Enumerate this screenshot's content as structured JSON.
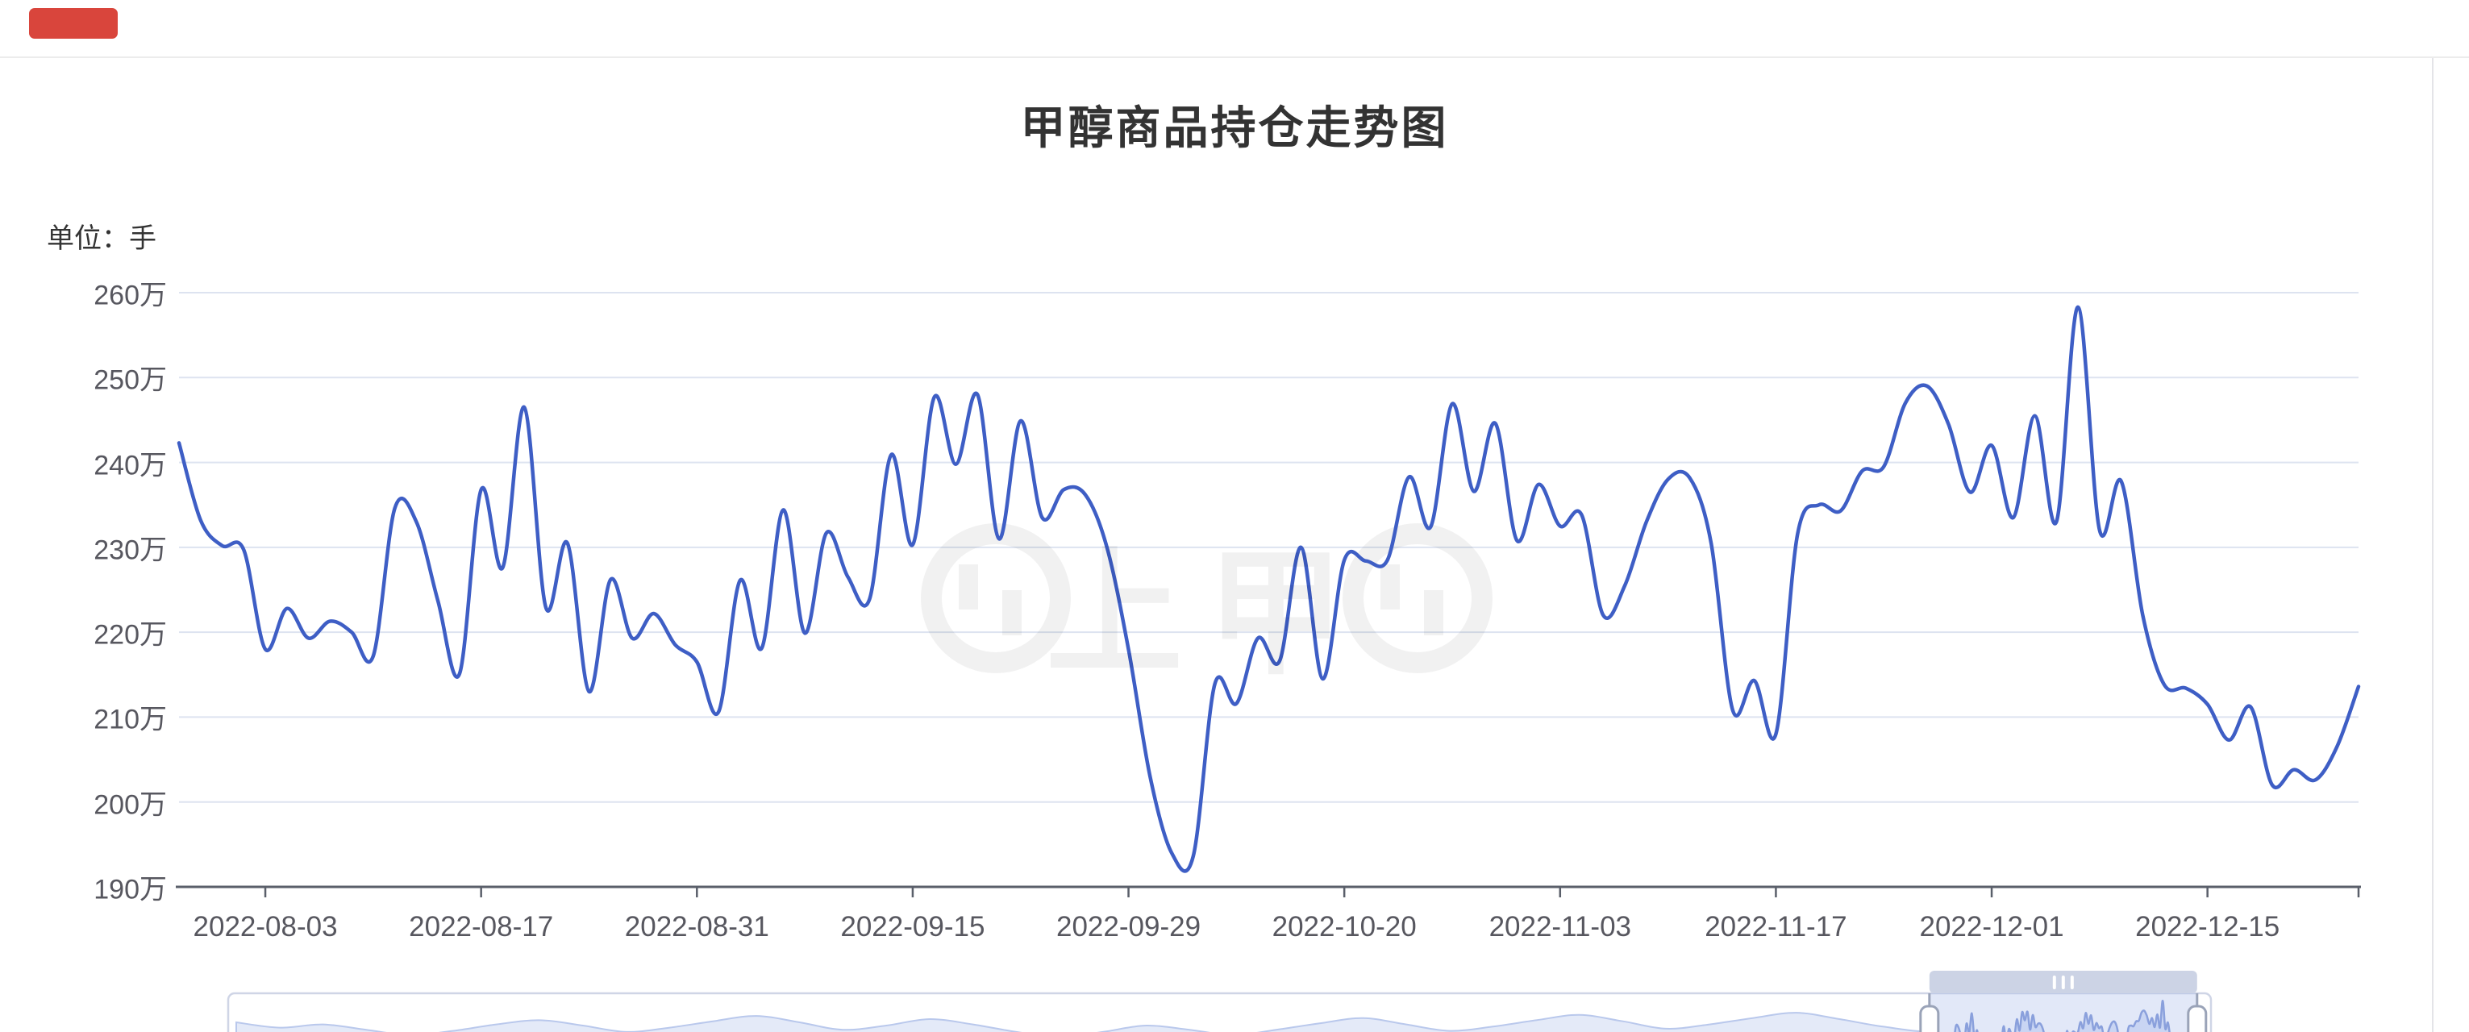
{
  "window": {
    "badge_color": "#d9453c"
  },
  "chart_data": {
    "type": "line",
    "title": "甲醇商品持仓走势图",
    "unit_label": "单位：手",
    "unit": "手",
    "smooth": true,
    "grid": true,
    "legend_position": "none",
    "ylim": [
      190,
      260
    ],
    "y_tick_labels": [
      "260万",
      "250万",
      "240万",
      "230万",
      "220万",
      "210万",
      "200万",
      "190万"
    ],
    "y_tick_values": [
      260,
      250,
      240,
      230,
      220,
      210,
      200,
      190
    ],
    "x_tick_labels": [
      "2022-08-03",
      "2022-08-17",
      "2022-08-31",
      "2022-09-15",
      "2022-09-29",
      "2022-10-20",
      "2022-11-03",
      "2022-11-17",
      "2022-12-01",
      "2022-12-15"
    ],
    "x_tick_indices": [
      4,
      14,
      24,
      34,
      44,
      54,
      64,
      74,
      84,
      94
    ],
    "num_points": 102,
    "values": [
      242.3,
      233.2,
      230.2,
      229.7,
      218.0,
      222.8,
      219.3,
      221.3,
      220.0,
      217.2,
      234.6,
      233.0,
      223.7,
      215.1,
      236.8,
      227.6,
      246.5,
      222.9,
      230.5,
      213.0,
      226.2,
      219.3,
      222.2,
      218.5,
      216.5,
      210.6,
      226.1,
      218.1,
      234.4,
      219.9,
      231.7,
      226.5,
      223.9,
      240.9,
      230.3,
      247.7,
      239.8,
      248.0,
      231.0,
      244.9,
      233.5,
      236.8,
      236.2,
      230.0,
      218.0,
      203.0,
      194.0,
      193.6,
      213.9,
      211.6,
      219.3,
      216.6,
      230.0,
      214.5,
      228.5,
      228.4,
      228.5,
      238.3,
      232.4,
      246.9,
      236.6,
      244.6,
      230.8,
      237.4,
      232.5,
      233.8,
      222.0,
      225.5,
      233.0,
      238.0,
      238.2,
      230.5,
      210.8,
      214.3,
      208.0,
      231.5,
      235.0,
      234.3,
      239.0,
      239.5,
      247.0,
      249.0,
      244.5,
      236.5,
      242.0,
      233.5,
      245.5,
      233.0,
      258.3,
      232.0,
      237.8,
      222.0,
      213.8,
      213.4,
      211.5,
      207.3,
      211.2,
      202.0,
      203.8,
      202.6,
      206.5,
      213.6
    ],
    "watermark_text": "上甲",
    "colors": {
      "line": "#3e5ec5",
      "grid": "#dde3f0",
      "axis": "#5a5f6a",
      "tick_label": "#57575f",
      "title": "#333333",
      "unit": "#333333",
      "watermark": "rgba(0,0,0,0.055)"
    },
    "data_zoom": {
      "window_start_fraction": 0.858,
      "window_end_fraction": 0.993,
      "grip_icon": "|||",
      "preview_values": [
        238,
        233,
        236,
        231,
        226,
        230,
        236,
        240,
        235,
        229,
        233,
        239,
        244,
        238,
        231,
        235,
        241,
        236,
        229,
        224,
        229,
        235,
        231,
        226,
        231,
        237,
        242,
        236,
        230,
        234,
        240,
        245,
        239,
        232,
        236,
        242,
        247,
        241,
        234,
        230
      ],
      "colors": {
        "frame_border": "#cfd5e6",
        "silhouette_line": "#b9c8ec",
        "silhouette_fill": "#e4eaf8",
        "selected_silhouette_line": "#8aa0dc",
        "selected_silhouette_fill": "#c9d5f3",
        "selection_fill": "rgba(150,172,230,0.28)",
        "move_bar": "#ccd3e5",
        "handle_fill": "#ffffff",
        "handle_border": "#9aa3b8"
      }
    }
  }
}
